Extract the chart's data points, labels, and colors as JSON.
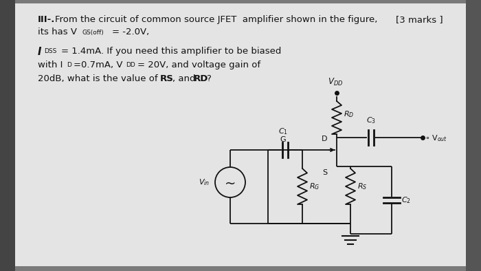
{
  "bg_outer": "#888888",
  "bg_paper": "#e0e0e0",
  "text_color": "#111111",
  "circuit_color": "#111111",
  "title1": "III-.  From the circuit of common source JFET  amplifier shown in the figure,",
  "marks": "[3 marks ]",
  "line2": "its has V",
  "line2sub": "GS(off)",
  "line2end": " = -2.0V,",
  "body1a": "I",
  "body1sub": "DSS",
  "body1end": " = 1.4mA. If you need this amplifier to be biased",
  "body2a": "with I",
  "body2sub1": "D",
  "body2b": " =0.7mA, V",
  "body2sub2": "DD",
  "body2c": " = 20V, and voltage gain of",
  "body3a": "20dB, what is the value of ",
  "body3bold1": "RS",
  "body3b": ", and ",
  "body3bold2": "RD",
  "body3c": "?"
}
